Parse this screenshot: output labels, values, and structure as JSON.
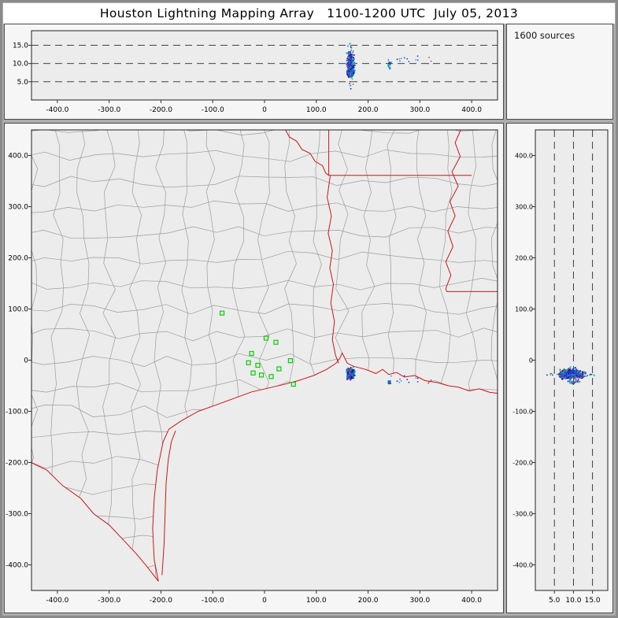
{
  "title": "Houston Lightning Mapping Array   1100-1200 UTC  July 05, 2013",
  "source_count_label": "1600 sources",
  "colors": {
    "window_bg": "#adadad",
    "frame_border": "#8a8a8a",
    "title_bg": "#ffffff",
    "panel_bg": "#f6f6f6",
    "plot_bg": "#ececec",
    "county": "#9c9c9c",
    "state": "#cc1515",
    "station": "#00d000",
    "grid": "#2a2a2a",
    "axis": "#000000"
  },
  "chart_data": {
    "type": "scatter",
    "title": "Houston Lightning Mapping Array   1100-1200 UTC  July 05, 2013",
    "source_count": 1600,
    "panels": [
      {
        "id": "altitude-vs-east-west",
        "x_range": [
          -450,
          450
        ],
        "y_range": [
          0,
          19
        ],
        "x_ticks": {
          "values": [
            -400,
            -300,
            -200,
            -100,
            0,
            100,
            200,
            300,
            400
          ],
          "labels": [
            "-400.0",
            "-300.0",
            "-200.0",
            "-100.0",
            "0",
            "100.0",
            "200.0",
            "300.0",
            "400.0"
          ]
        },
        "y_ticks": {
          "values": [
            15,
            10,
            5
          ],
          "labels": [
            "15.0",
            "10.0",
            "5.0"
          ]
        },
        "gridlines_y": [
          5,
          10,
          15
        ],
        "grid_style": "dashed"
      },
      {
        "id": "plan-view",
        "x_range": [
          -450,
          450
        ],
        "y_range": [
          -450,
          450
        ],
        "x_ticks": {
          "values": [
            -400,
            -300,
            -200,
            -100,
            0,
            100,
            200,
            300,
            400
          ],
          "labels": [
            "-400.0",
            "-300.0",
            "-200.0",
            "-100.0",
            "0",
            "100.0",
            "200.0",
            "300.0",
            "400.0"
          ]
        },
        "y_ticks": {
          "values": [
            400,
            300,
            200,
            100,
            0,
            -100,
            -200,
            -300,
            -400
          ],
          "labels": [
            "400.0",
            "300.0",
            "200.0",
            "100.0",
            "0",
            "-100.0",
            "-200.0",
            "-300.0",
            "-400.0"
          ]
        },
        "grid_style": "none"
      },
      {
        "id": "altitude-vs-north-south",
        "x_range": [
          0,
          19
        ],
        "y_range": [
          -450,
          450
        ],
        "x_ticks": {
          "values": [
            5,
            10,
            15
          ],
          "labels": [
            "5.0",
            "10.0",
            "15.0"
          ]
        },
        "y_ticks": {
          "values": [
            400,
            300,
            200,
            100,
            0,
            -100,
            -200,
            -300,
            -400
          ],
          "labels": [
            "400.0",
            "300.0",
            "200.0",
            "100.0",
            "0",
            "-100.0",
            "-200.0",
            "-300.0",
            "-400.0"
          ]
        },
        "gridlines_x": [
          5,
          10,
          15
        ],
        "grid_style": "dashed"
      }
    ],
    "stations_km": [
      [
        -82,
        92
      ],
      [
        3,
        43
      ],
      [
        22,
        35
      ],
      [
        -25,
        13
      ],
      [
        -31,
        -5
      ],
      [
        -13,
        -10
      ],
      [
        -22,
        -25
      ],
      [
        -6,
        -29
      ],
      [
        13,
        -32
      ],
      [
        28,
        -17
      ],
      [
        50,
        -1
      ],
      [
        56,
        -47
      ]
    ],
    "source_clusters": [
      {
        "name": "main-storm",
        "center_x_km": 166,
        "center_y_km": -27,
        "center_alt_km": 9.5,
        "spread_x_km": 6,
        "spread_y_km": 9,
        "spread_alt_km": 3.0,
        "count": 280
      },
      {
        "name": "storm-halo",
        "center_x_km": 166,
        "center_y_km": -28,
        "center_alt_km": 9.0,
        "spread_x_km": 5,
        "spread_y_km": 5,
        "spread_alt_km": 5.5,
        "count": 70
      },
      {
        "name": "small-cell-east",
        "center_x_km": 241,
        "center_y_km": -43,
        "center_alt_km": 9.5,
        "spread_x_km": 3,
        "spread_y_km": 3,
        "spread_alt_km": 1.5,
        "count": 20
      },
      {
        "name": "scattered-east",
        "center_x_km": 285,
        "center_y_km": -40,
        "center_alt_km": 11.0,
        "spread_x_km": 40,
        "spread_y_km": 8,
        "spread_alt_km": 1.2,
        "count": 14
      }
    ],
    "point_colors": [
      "#2222cc",
      "#3355dd",
      "#0099dd",
      "#00bcc8",
      "#111199",
      "#7733cc",
      "#00a855",
      "#cc3311"
    ]
  }
}
